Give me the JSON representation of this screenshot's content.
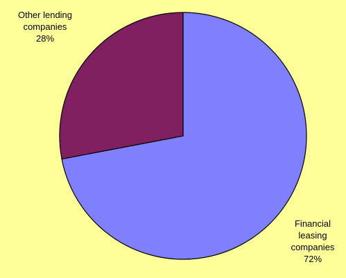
{
  "chart_data": {
    "type": "pie",
    "title": "",
    "start_angle_deg": 0,
    "direction": "clockwise",
    "background_color": "#FFFF99",
    "slices": [
      {
        "label_lines": [
          "Financial",
          "leasing",
          "companies"
        ],
        "value": 72,
        "value_label": "72%",
        "color": "#8080FF"
      },
      {
        "label_lines": [
          "Other lending",
          "companies"
        ],
        "value": 28,
        "value_label": "28%",
        "color": "#802060"
      }
    ]
  }
}
